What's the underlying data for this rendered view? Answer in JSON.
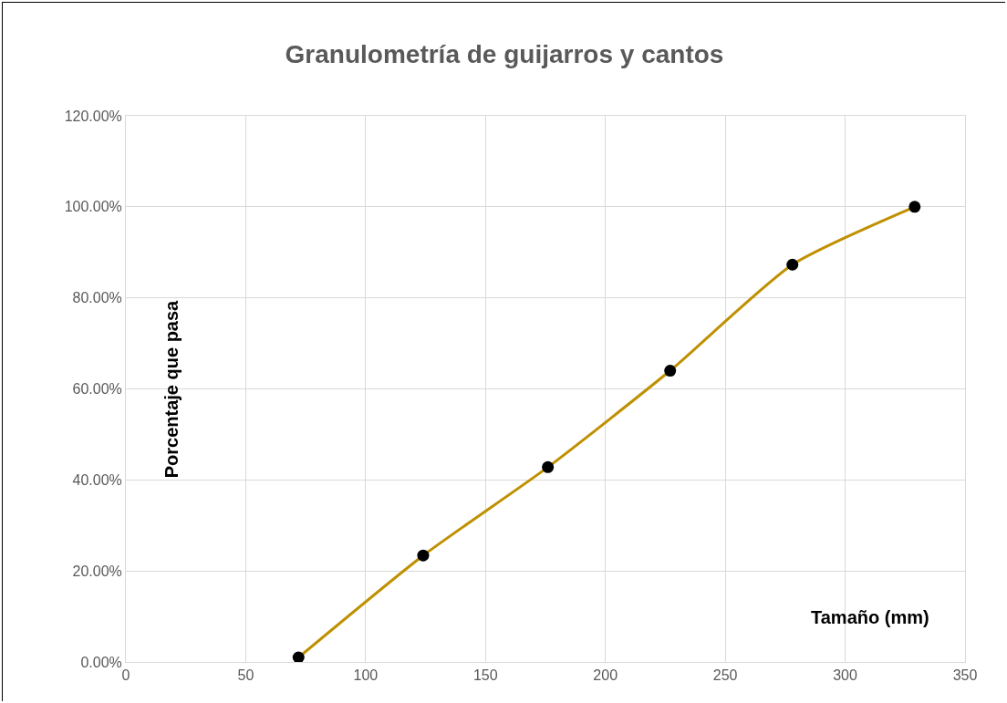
{
  "chart_data": {
    "type": "line",
    "title": "Granulometría de guijarros y cantos",
    "xlabel": "Tamaño (mm)",
    "ylabel": "Porcentaje que pasa",
    "series": [
      {
        "color": "#bf9000",
        "x": [
          72,
          124,
          176,
          227,
          278,
          329
        ],
        "values": [
          1.0,
          23.4,
          42.8,
          64.0,
          87.3,
          100.0
        ]
      }
    ],
    "xlim": [
      0,
      350
    ],
    "xticks": [
      0,
      50,
      100,
      150,
      200,
      250,
      300,
      350
    ],
    "ylim": [
      0,
      120
    ],
    "yticks": [
      {
        "value": 0,
        "label": "0.00%"
      },
      {
        "value": 20,
        "label": "20.00%"
      },
      {
        "value": 40,
        "label": "40.00%"
      },
      {
        "value": 60,
        "label": "60.00%"
      },
      {
        "value": 80,
        "label": "80.00%"
      },
      {
        "value": 100,
        "label": "100.00%"
      },
      {
        "value": 120,
        "label": "120.00%"
      }
    ],
    "grid": true,
    "marker": "circle",
    "line_style": "solid"
  }
}
